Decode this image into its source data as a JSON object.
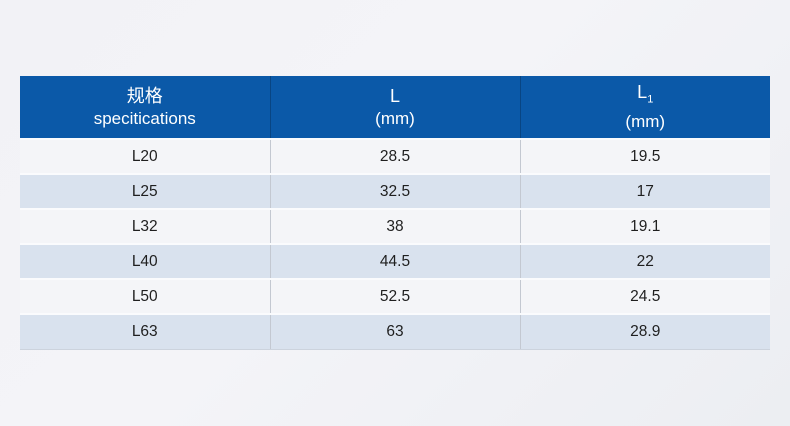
{
  "table": {
    "header": {
      "col1": {
        "line1": "规格",
        "line2": "specitications"
      },
      "col2": {
        "line1": "L",
        "line2": "(mm)"
      },
      "col3": {
        "base": "L",
        "sub": "1",
        "line2": "(mm)"
      }
    },
    "rows": [
      [
        "L20",
        "28.5",
        "19.5"
      ],
      [
        "L25",
        "32.5",
        "17"
      ],
      [
        "L32",
        "38",
        "19.1"
      ],
      [
        "L40",
        "44.5",
        "22"
      ],
      [
        "L50",
        "52.5",
        "24.5"
      ],
      [
        "L63",
        "63",
        "28.9"
      ]
    ],
    "colors": {
      "header_bg": "#0b59a8",
      "header_text": "#ffffff",
      "row_light": "#f4f5f8",
      "row_blue": "#d9e2ee",
      "body_text": "#1f1f1f"
    }
  }
}
